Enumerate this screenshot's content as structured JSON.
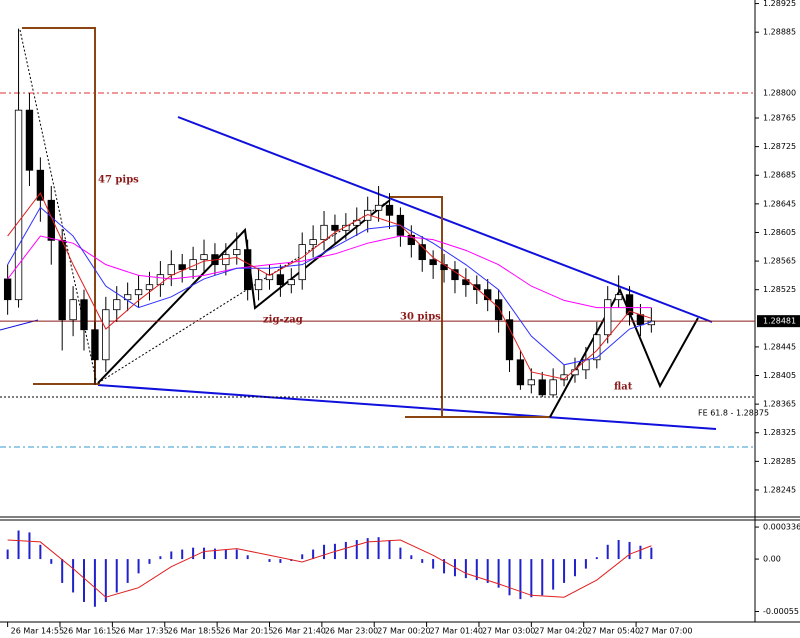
{
  "chart_data": {
    "type": "candlestick",
    "xlim": [
      -0.7,
      68.5
    ],
    "xticks": [
      {
        "value": 0,
        "label": "26 Mar 14:55"
      },
      {
        "value": 4.8,
        "label": "26 Mar 16:15"
      },
      {
        "value": 9.6,
        "label": "26 Mar 17:35"
      },
      {
        "value": 14.4,
        "label": "26 Mar 18:55"
      },
      {
        "value": 19.2,
        "label": "26 Mar 20:15"
      },
      {
        "value": 24,
        "label": "26 Mar 21:40"
      },
      {
        "value": 28.8,
        "label": "26 Mar 23:00"
      },
      {
        "value": 33.6,
        "label": "27 Mar 00:20"
      },
      {
        "value": 38.4,
        "label": "27 Mar 01:40"
      },
      {
        "value": 43.2,
        "label": "27 Mar 03:00"
      },
      {
        "value": 48,
        "label": "27 Mar 04:20"
      },
      {
        "value": 52.8,
        "label": "27 Mar 05:40"
      },
      {
        "value": 57.6,
        "label": "27 Mar 07:00"
      }
    ],
    "ylim": [
      1.2821,
      1.2893
    ],
    "yticks": [
      1.28925,
      1.28885,
      1.28765,
      1.28725,
      1.28685,
      1.28645,
      1.28605,
      1.28565,
      1.28525,
      1.28445,
      1.28405,
      1.28365,
      1.28325,
      1.28285,
      1.28245
    ],
    "open": [
      1.2854,
      1.28511,
      1.28776,
      1.28692,
      1.2865,
      1.28594,
      1.28483,
      1.28511,
      1.28469,
      1.28427,
      1.28497,
      1.28511,
      1.28518,
      1.28525,
      1.28532,
      1.28546,
      1.2856,
      1.28553,
      1.28567,
      1.28574,
      1.2856,
      1.28574,
      1.28581,
      1.28525,
      1.28539,
      1.28546,
      1.28532,
      1.28539,
      1.28588,
      1.28595,
      1.28615,
      1.28608,
      1.28615,
      1.28622,
      1.28636,
      1.28643,
      1.28629,
      1.28601,
      1.28588,
      1.28567,
      1.2856,
      1.28553,
      1.28539,
      1.28532,
      1.28525,
      1.28511,
      1.28483,
      1.28427,
      1.28392,
      1.28399,
      1.28378,
      1.28399,
      1.28406,
      1.28413,
      1.28427,
      1.28462,
      1.28511,
      1.28518,
      1.2849,
      1.28476
    ],
    "high": [
      1.2856,
      1.2889,
      1.288,
      1.2871,
      1.2867,
      1.2861,
      1.2853,
      1.28525,
      1.2848,
      1.28515,
      1.2853,
      1.28535,
      1.28545,
      1.2855,
      1.28565,
      1.2858,
      1.28575,
      1.28585,
      1.28595,
      1.2859,
      1.2859,
      1.28605,
      1.28595,
      1.28555,
      1.2856,
      1.2856,
      1.28555,
      1.28605,
      1.28615,
      1.28635,
      1.2863,
      1.28632,
      1.2864,
      1.28655,
      1.2867,
      1.2866,
      1.2864,
      1.28615,
      1.286,
      1.2858,
      1.28575,
      1.28565,
      1.28555,
      1.28545,
      1.2854,
      1.28525,
      1.28495,
      1.2844,
      1.28415,
      1.2841,
      1.28415,
      1.2842,
      1.2843,
      1.28445,
      1.2848,
      1.2853,
      1.28545,
      1.2853,
      1.28505,
      1.285
    ],
    "low": [
      1.2849,
      1.285,
      1.2867,
      1.2862,
      1.2856,
      1.2844,
      1.2846,
      1.2844,
      1.28392,
      1.2841,
      1.2848,
      1.28495,
      1.285,
      1.2851,
      1.28515,
      1.2853,
      1.28535,
      1.2854,
      1.2855,
      1.28545,
      1.28545,
      1.2856,
      1.2851,
      1.2851,
      1.28525,
      1.28515,
      1.2852,
      1.28525,
      1.2857,
      1.2858,
      1.2859,
      1.28595,
      1.286,
      1.28605,
      1.2862,
      1.2861,
      1.28585,
      1.2857,
      1.2855,
      1.2854,
      1.28535,
      1.2852,
      1.28515,
      1.28505,
      1.28495,
      1.28465,
      1.2841,
      1.28385,
      1.2838,
      1.28375,
      1.28376,
      1.2839,
      1.28395,
      1.284,
      1.28415,
      1.2845,
      1.285,
      1.28475,
      1.2846,
      1.28465
    ],
    "close": [
      1.28511,
      1.28776,
      1.28692,
      1.2865,
      1.28594,
      1.28483,
      1.28511,
      1.28469,
      1.28427,
      1.28497,
      1.28511,
      1.28518,
      1.28525,
      1.28532,
      1.28546,
      1.2856,
      1.28553,
      1.28567,
      1.28574,
      1.2856,
      1.28574,
      1.28581,
      1.28525,
      1.28539,
      1.28546,
      1.28532,
      1.28539,
      1.28588,
      1.28595,
      1.28615,
      1.28608,
      1.28615,
      1.28622,
      1.28636,
      1.28643,
      1.28629,
      1.28601,
      1.28588,
      1.28567,
      1.2856,
      1.28553,
      1.28539,
      1.28532,
      1.28525,
      1.28511,
      1.28483,
      1.28427,
      1.28392,
      1.28399,
      1.28378,
      1.28399,
      1.28406,
      1.28413,
      1.28427,
      1.28462,
      1.28511,
      1.28518,
      1.2849,
      1.28476,
      1.28481
    ],
    "up_color": "#ffffff",
    "down_color": "#000000",
    "series": [
      {
        "color": "#ff00ff",
        "x": [
          0,
          3,
          6,
          9,
          12,
          15,
          18,
          21,
          24,
          27,
          30,
          33,
          36,
          39,
          42,
          45,
          48,
          51,
          54,
          57,
          59
        ],
        "values": [
          1.2854,
          1.286,
          1.2859,
          1.2856,
          1.28545,
          1.2854,
          1.28545,
          1.28555,
          1.2856,
          1.28565,
          1.28575,
          1.2859,
          1.286,
          1.28595,
          1.2858,
          1.2856,
          1.2853,
          1.2851,
          1.285,
          1.285,
          1.285
        ]
      },
      {
        "color": "#3030ff",
        "x": [
          0,
          3,
          6,
          9,
          12,
          15,
          18,
          21,
          24,
          27,
          30,
          33,
          36,
          39,
          42,
          45,
          48,
          51,
          54,
          57,
          59
        ],
        "values": [
          1.2856,
          1.2864,
          1.286,
          1.2853,
          1.285,
          1.28515,
          1.2854,
          1.28555,
          1.28555,
          1.2856,
          1.28585,
          1.2861,
          1.28615,
          1.2859,
          1.2856,
          1.28525,
          1.2846,
          1.2842,
          1.2843,
          1.2847,
          1.2848
        ]
      },
      {
        "color": "#e02020",
        "x": [
          0,
          3,
          6,
          9,
          12,
          15,
          18,
          21,
          24,
          27,
          30,
          33,
          36,
          39,
          42,
          45,
          48,
          51,
          54,
          57,
          59
        ],
        "values": [
          1.286,
          1.2866,
          1.2856,
          1.2847,
          1.2851,
          1.28545,
          1.28565,
          1.2857,
          1.28545,
          1.2857,
          1.28605,
          1.2863,
          1.28615,
          1.2857,
          1.2854,
          1.285,
          1.2841,
          1.284,
          1.2844,
          1.28495,
          1.28485
        ]
      }
    ],
    "levels": [
      {
        "value": 1.288,
        "label": "1.28800",
        "color": "#e03030"
      },
      {
        "value": 1.28305,
        "color": "#3399cc"
      },
      {
        "value": 1.28375,
        "color": "#000000"
      }
    ],
    "current_price": 1.28481,
    "current_color": "#8b1a1a",
    "annotations": [
      "47 pips",
      "30 pips",
      "zig-zag",
      "flat",
      "FE 61.8 - 1.28375"
    ],
    "indicator": {
      "type": "macd",
      "color": "#2020cc",
      "values": [
        0.0001,
        0.0003,
        0.00028,
        0.00015,
        -5e-05,
        -0.00025,
        -0.00035,
        -0.00045,
        -0.0005,
        -0.00045,
        -0.00035,
        -0.00025,
        -0.00015,
        -5e-05,
        3e-05,
        8e-05,
        0.0001,
        0.00012,
        0.00012,
        0.00011,
        0.0001,
        0.0001,
        4e-05,
        0.0,
        -3e-05,
        -4e-05,
        -2e-05,
        5e-05,
        0.0001,
        0.00015,
        0.00016,
        0.00018,
        0.0002,
        0.00022,
        0.00023,
        0.0002,
        0.00012,
        4e-05,
        -4e-05,
        -0.0001,
        -0.00015,
        -0.00018,
        -0.0002,
        -0.00022,
        -0.00025,
        -0.0003,
        -0.00038,
        -0.00042,
        -0.0004,
        -0.00038,
        -0.00032,
        -0.00025,
        -0.00018,
        -0.0001,
        2e-05,
        0.00015,
        0.0002,
        0.00018,
        0.00014,
        0.00012
      ],
      "signal": {
        "color": "#e02020",
        "x": [
          0,
          3,
          6,
          9,
          12,
          15,
          18,
          21,
          24,
          27,
          30,
          33,
          36,
          39,
          42,
          45,
          48,
          51,
          54,
          57,
          59
        ],
        "values": [
          0.0002,
          0.00018,
          -0.0001,
          -0.0004,
          -0.0003,
          -8e-05,
          8e-05,
          0.00011,
          4e-05,
          -3e-05,
          8e-05,
          0.00018,
          0.0002,
          4e-05,
          -0.00015,
          -0.00026,
          -0.00038,
          -0.0004,
          -0.00022,
          5e-05,
          0.00014
        ]
      },
      "ylim": [
        -0.00066,
        0.00041
      ],
      "yticks": [
        0.000336,
        {
          "value": 0,
          "label": "0.00"
        },
        -0.00055
      ]
    }
  }
}
